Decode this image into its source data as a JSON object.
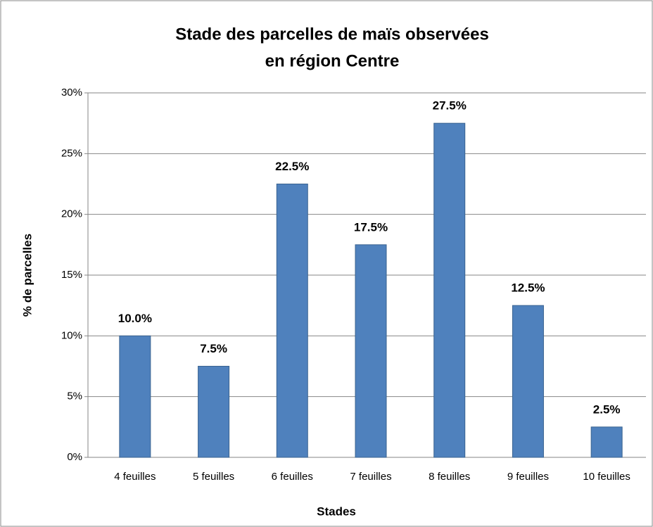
{
  "chart_data": {
    "type": "bar",
    "title": [
      "Stade des parcelles de maïs observées",
      "en région Centre"
    ],
    "x_label": "Stades",
    "y_label": "% de parcelles",
    "categories": [
      "4 feuilles",
      "5 feuilles",
      "6 feuilles",
      "7 feuilles",
      "8 feuilles",
      "9 feuilles",
      "10 feuilles"
    ],
    "values": [
      10,
      7.5,
      22.5,
      17.5,
      27.5,
      12.5,
      2.5
    ],
    "value_labels": [
      "10.0%",
      "7.5%",
      "22.5%",
      "17.5%",
      "27.5%",
      "12.5%",
      "2.5%"
    ],
    "color": "#4f81bd",
    "ylim": [
      0,
      30
    ],
    "yticks": [
      {
        "value": 0,
        "label": "0%"
      },
      {
        "value": 5,
        "label": "5%"
      },
      {
        "value": 10,
        "label": "10%"
      },
      {
        "value": 15,
        "label": "15%"
      },
      {
        "value": 20,
        "label": "20%"
      },
      {
        "value": 25,
        "label": "25%"
      },
      {
        "value": 30,
        "label": "30%"
      }
    ],
    "grid": true
  }
}
